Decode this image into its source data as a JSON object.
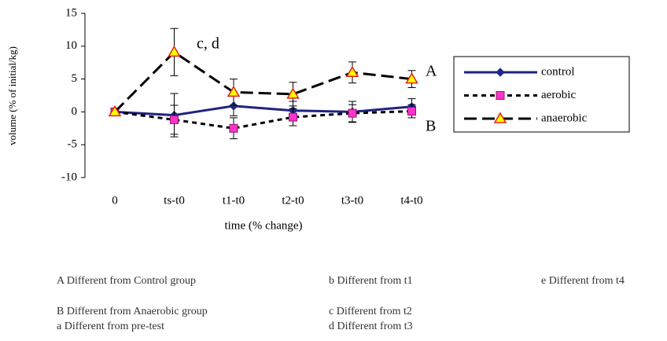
{
  "chart_data": {
    "type": "line",
    "y_label": "volume (% of initial/kg)",
    "x_label": "time (% change)",
    "categories": [
      "0",
      "ts-t0",
      "t1-t0",
      "t2-t0",
      "t3-t0",
      "t4-t0"
    ],
    "series": [
      {
        "name": "control",
        "color": "#1f237f",
        "marker": "diamond",
        "marker_color": "#1f2a8a",
        "style": "solid",
        "values": [
          0,
          -0.5,
          0.9,
          0.2,
          0,
          0.8
        ],
        "errors": [
          0,
          3.3,
          1.5,
          1.4,
          1.6,
          1.2
        ]
      },
      {
        "name": "aerobic",
        "color": "#000000",
        "marker": "square",
        "marker_color": "#ff33cc",
        "style": "dashed",
        "values": [
          0,
          -1.2,
          -2.5,
          -0.8,
          -0.2,
          0.1
        ],
        "errors": [
          0,
          2.2,
          1.6,
          1.3,
          1.3,
          1.0
        ]
      },
      {
        "name": "anaerobic",
        "color": "#000000",
        "marker": "triangle",
        "marker_color": "#ffff00",
        "style": "longdash",
        "values": [
          0,
          9.1,
          3,
          2.7,
          6,
          5
        ],
        "errors": [
          0,
          3.6,
          2.0,
          1.8,
          1.6,
          1.3
        ]
      }
    ],
    "ylim": [
      -10,
      15
    ],
    "yticks": [
      -10,
      -5,
      0,
      5,
      10,
      15
    ],
    "annotations": [
      "c, d",
      "A",
      "B"
    ],
    "footnotes": [
      [
        "A  Different from Control group",
        "B  Different from Anaerobic group",
        "a  Different from pre-test"
      ],
      [
        "b  Different from t1",
        "c  Different from t2",
        "d  Different from t3"
      ],
      [
        "e  Different from t4"
      ]
    ]
  }
}
